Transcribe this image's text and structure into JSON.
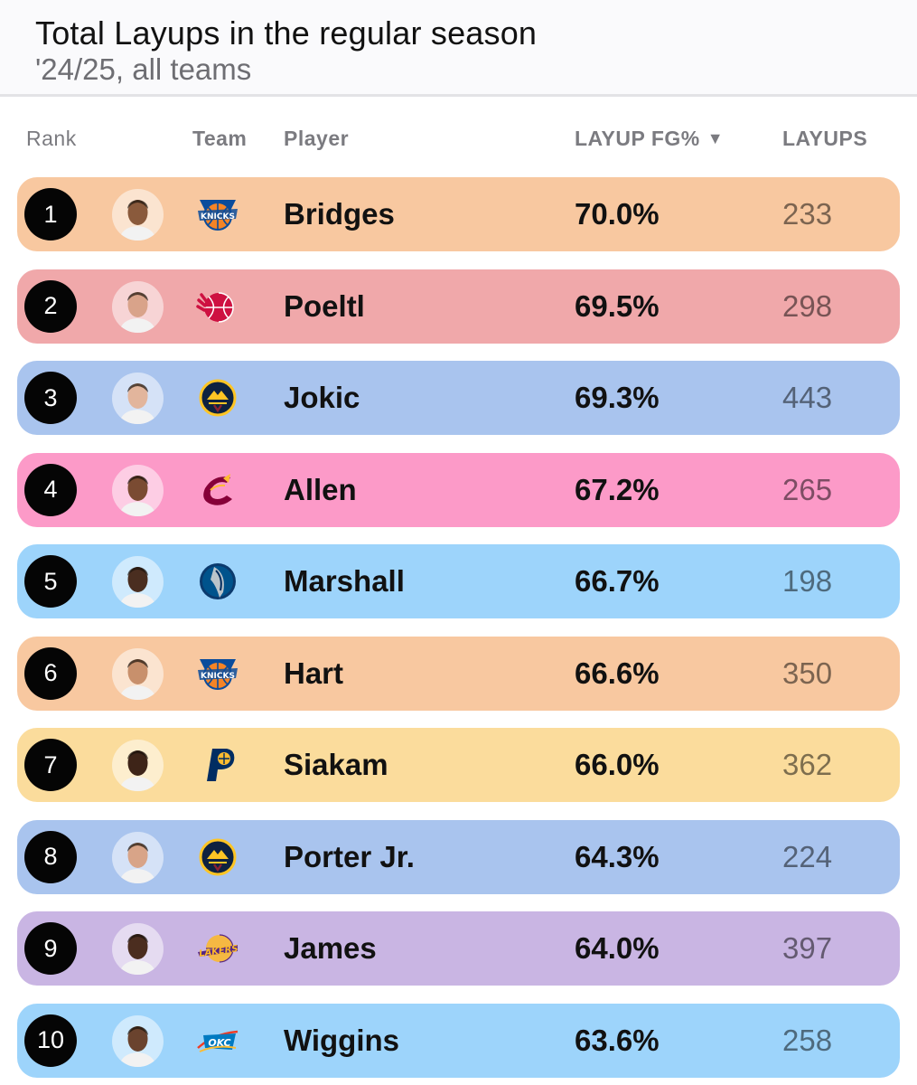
{
  "header": {
    "title": "Total Layups in the regular season",
    "subtitle": "'24/25, all teams"
  },
  "columns": {
    "rank": "Rank",
    "team": "Team",
    "player": "Player",
    "pct": "LAYUP FG%",
    "sort_indicator": "▼",
    "layups": "LAYUPS"
  },
  "rows": [
    {
      "rank": "1",
      "player": "Bridges",
      "pct": "70.0%",
      "layups": "233",
      "team_logo": "knicks-logo",
      "color": "#f8c8a0"
    },
    {
      "rank": "2",
      "player": "Poeltl",
      "pct": "69.5%",
      "layups": "298",
      "team_logo": "raptors-logo",
      "color": "#f0a8aa"
    },
    {
      "rank": "3",
      "player": "Jokic",
      "pct": "69.3%",
      "layups": "443",
      "team_logo": "nuggets-logo",
      "color": "#a9c4ee"
    },
    {
      "rank": "4",
      "player": "Allen",
      "pct": "67.2%",
      "layups": "265",
      "team_logo": "cavaliers-logo",
      "color": "#fc9ac8"
    },
    {
      "rank": "5",
      "player": "Marshall",
      "pct": "66.7%",
      "layups": "198",
      "team_logo": "mavericks-logo",
      "color": "#9dd4fb"
    },
    {
      "rank": "6",
      "player": "Hart",
      "pct": "66.6%",
      "layups": "350",
      "team_logo": "knicks-logo",
      "color": "#f8c8a0"
    },
    {
      "rank": "7",
      "player": "Siakam",
      "pct": "66.0%",
      "layups": "362",
      "team_logo": "pacers-logo",
      "color": "#fbdc9c"
    },
    {
      "rank": "8",
      "player": "Porter Jr.",
      "pct": "64.3%",
      "layups": "224",
      "team_logo": "nuggets-logo",
      "color": "#a9c4ee"
    },
    {
      "rank": "9",
      "player": "James",
      "pct": "64.0%",
      "layups": "397",
      "team_logo": "lakers-logo",
      "color": "#c9b5e3"
    },
    {
      "rank": "10",
      "player": "Wiggins",
      "pct": "63.6%",
      "layups": "258",
      "team_logo": "thunder-logo",
      "color": "#9dd4fb"
    }
  ]
}
